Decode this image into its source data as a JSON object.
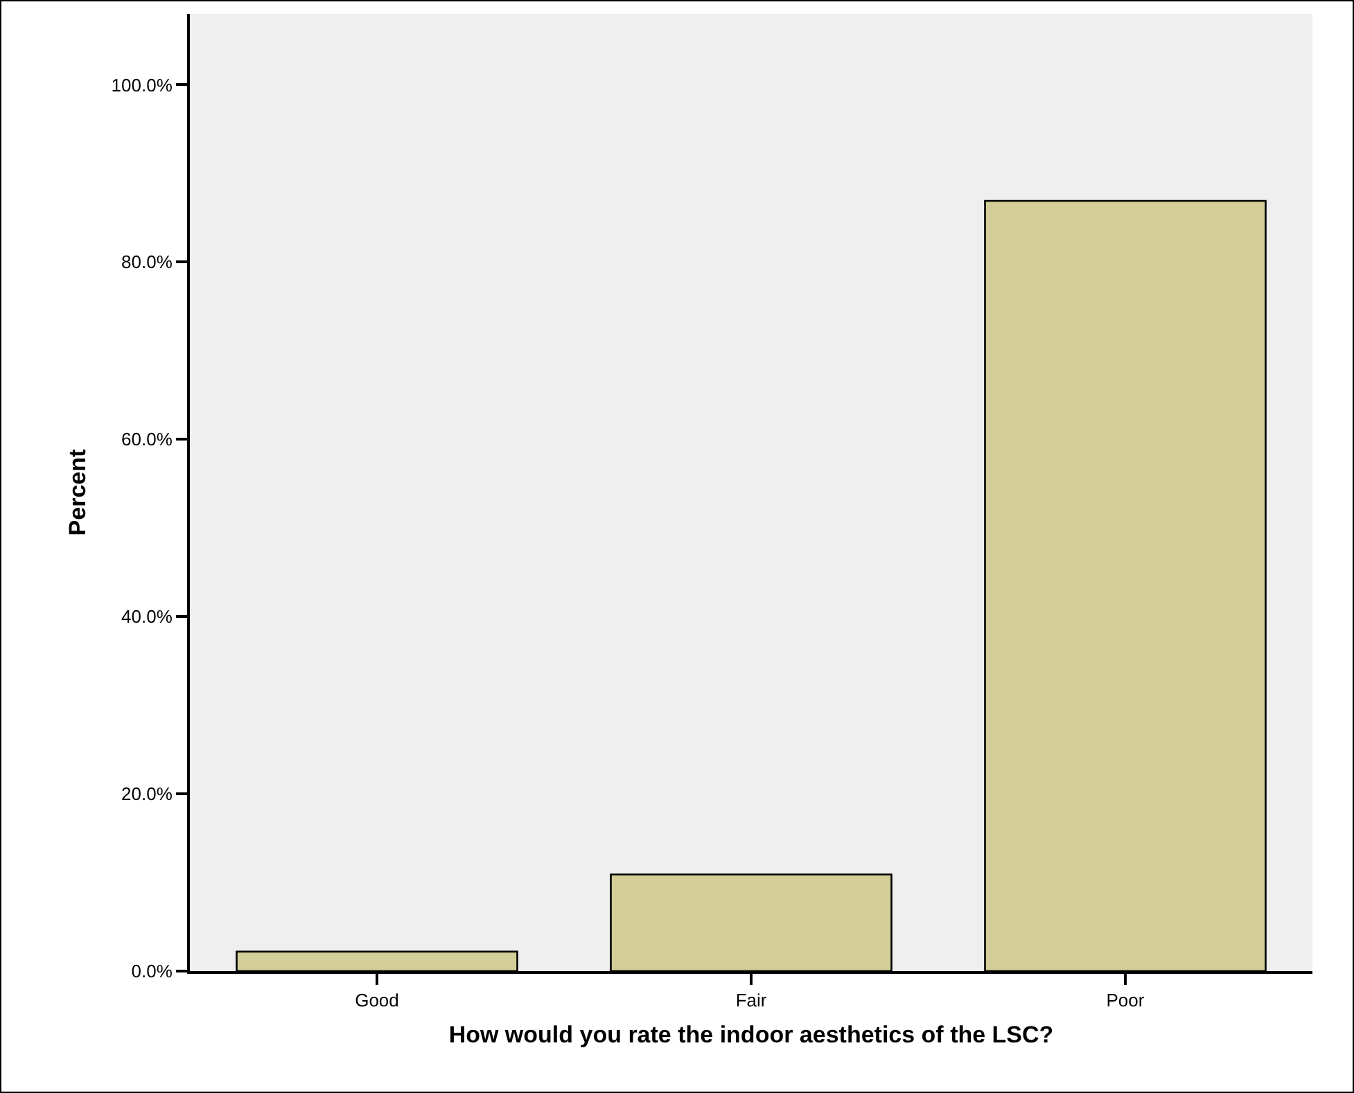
{
  "chart_data": {
    "type": "bar",
    "xlabel": "How would you rate the indoor aesthetics of the LSC?",
    "ylabel": "Percent",
    "categories": [
      "Good",
      "Fair",
      "Poor"
    ],
    "values": [
      2.2,
      10.9,
      86.9
    ],
    "color": "#d3ce97",
    "ylim": [
      0,
      108
    ],
    "yticks": [
      {
        "value": 0,
        "label": "0.0%"
      },
      {
        "value": 20,
        "label": "20.0%"
      },
      {
        "value": 40,
        "label": "40.0%"
      },
      {
        "value": 60,
        "label": "60.0%"
      },
      {
        "value": 80,
        "label": "80.0%"
      },
      {
        "value": 100,
        "label": "100.0%"
      }
    ],
    "grid": false
  }
}
